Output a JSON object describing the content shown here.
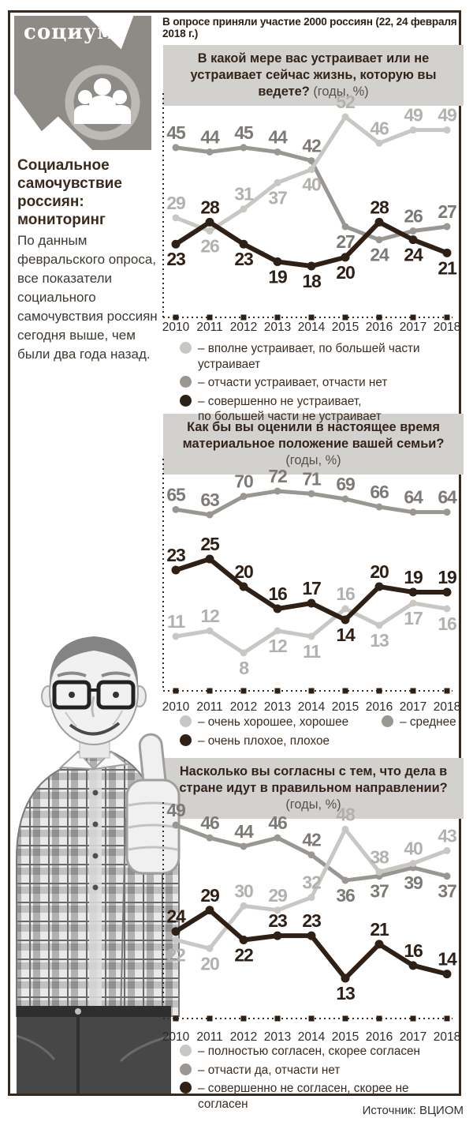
{
  "header": {
    "logo_text": "социум",
    "survey_note": "В опросе приняли участие 2000 россиян (22, 24 февраля 2018 г.)"
  },
  "sidebar": {
    "title": "Социальное самочувствие россиян: мониторинг",
    "paragraph": "По данным февральского опроса, все показатели социального самочувствия россиян сегодня выше, чем были два года назад."
  },
  "colors": {
    "light": "#c9c7c4",
    "medium": "#9a9793",
    "dark": "#2f2016",
    "light_label": "#b3b1ae",
    "medium_label": "#7d7a76",
    "dark_label": "#2f2016",
    "frame": "#3a2a1d",
    "title_bg": "#d3d1ce",
    "logo_bg": "#8e8a86"
  },
  "page": {
    "source_label": "Источник: ВЦИОМ"
  },
  "chart_data": [
    {
      "type": "line",
      "title": "В какой мере вас устраивает или не устраивает сейчас жизнь, которую вы ведете?",
      "note": "(годы, %)",
      "categories": [
        "2010",
        "2011",
        "2012",
        "2013",
        "2014",
        "2015",
        "2016",
        "2017",
        "2018"
      ],
      "grid": false,
      "legend_position": "bottom",
      "series": [
        {
          "name": "отчасти устраивает, отчасти нет",
          "color_key": "medium",
          "values": [
            45,
            44,
            45,
            44,
            42,
            27,
            24,
            26,
            27
          ],
          "label_pos": [
            "above",
            "above",
            "above",
            "above",
            "above",
            "below",
            "below",
            "above",
            "above"
          ]
        },
        {
          "name": "вполне устраивает, по большей части устраивает",
          "color_key": "light",
          "values": [
            29,
            26,
            31,
            37,
            40,
            52,
            46,
            49,
            49
          ],
          "label_pos": [
            "above",
            "below",
            "above",
            "below",
            "below",
            "above",
            "above",
            "above",
            "above"
          ]
        },
        {
          "name": "совершенно не устраивает, по большей части не устраивает",
          "color_key": "dark",
          "values": [
            23,
            28,
            23,
            19,
            18,
            20,
            28,
            24,
            21
          ],
          "label_pos": [
            "below",
            "above",
            "below",
            "below",
            "below",
            "below",
            "above",
            "below",
            "below"
          ]
        }
      ],
      "legend": [
        {
          "color_key": "light",
          "label": "– вполне устраивает, по большей части устраивает"
        },
        {
          "color_key": "medium",
          "label": "– отчасти устраивает, отчасти нет"
        },
        {
          "color_key": "dark",
          "label": "– совершенно не устраивает,\nпо большей части не устраивает"
        }
      ]
    },
    {
      "type": "line",
      "title": "Как бы вы оценили в настоящее время материальное положение вашей семьи?",
      "note": "(годы, %)",
      "categories": [
        "2010",
        "2011",
        "2012",
        "2013",
        "2014",
        "2015",
        "2016",
        "2017",
        "2018"
      ],
      "grid": false,
      "legend_position": "bottom",
      "scale_note": "broken y-scale: 60-72 band compressed above 8-25 band",
      "series": [
        {
          "name": "среднее",
          "color_key": "medium",
          "values": [
            65,
            63,
            70,
            72,
            71,
            69,
            66,
            64,
            64
          ],
          "label_pos": [
            "above",
            "above",
            "above",
            "above",
            "above",
            "above",
            "above",
            "above",
            "above"
          ]
        },
        {
          "name": "очень хорошее, хорошее",
          "color_key": "light",
          "values": [
            11,
            12,
            8,
            12,
            11,
            16,
            13,
            17,
            16
          ],
          "label_pos": [
            "above",
            "above",
            "below",
            "below",
            "below",
            "above",
            "below",
            "below",
            "below"
          ]
        },
        {
          "name": "очень плохое, плохое",
          "color_key": "dark",
          "values": [
            23,
            25,
            20,
            16,
            17,
            14,
            20,
            19,
            19
          ],
          "label_pos": [
            "above",
            "above",
            "above",
            "above",
            "above",
            "below",
            "above",
            "above",
            "above"
          ]
        }
      ],
      "legend": [
        {
          "color_key": "light",
          "label": "– очень хорошее, хорошее"
        },
        {
          "color_key": "medium",
          "label": "– среднее"
        },
        {
          "color_key": "dark",
          "label": "– очень плохое, плохое"
        }
      ]
    },
    {
      "type": "line",
      "title": "Насколько вы согласны с тем, что дела в стране идут в правильном направлении?",
      "note": "(годы, %)",
      "categories": [
        "2010",
        "2011",
        "2012",
        "2013",
        "2014",
        "2015",
        "2016",
        "2017",
        "2018"
      ],
      "grid": false,
      "legend_position": "bottom",
      "series": [
        {
          "name": "отчасти да, отчасти нет",
          "color_key": "medium",
          "values": [
            49,
            46,
            44,
            46,
            42,
            36,
            37,
            39,
            37
          ],
          "label_pos": [
            "above",
            "above",
            "above",
            "above",
            "above",
            "below",
            "below",
            "below",
            "below"
          ]
        },
        {
          "name": "полностью согласен, скорее согласен",
          "color_key": "light",
          "values": [
            22,
            20,
            30,
            29,
            32,
            48,
            38,
            40,
            43
          ],
          "label_pos": [
            "below",
            "below",
            "above",
            "above",
            "above",
            "above",
            "above",
            "above",
            "above"
          ]
        },
        {
          "name": "совершенно не согласен, скорее не согласен",
          "color_key": "dark",
          "values": [
            24,
            29,
            22,
            23,
            23,
            13,
            21,
            16,
            14
          ],
          "label_pos": [
            "above",
            "above",
            "below",
            "above",
            "above",
            "below",
            "above",
            "above",
            "above"
          ]
        }
      ],
      "legend": [
        {
          "color_key": "light",
          "label": "– полностью согласен, скорее согласен"
        },
        {
          "color_key": "medium",
          "label": "– отчасти да, отчасти нет"
        },
        {
          "color_key": "dark",
          "label": "– совершенно не согласен, скорее не согласен"
        }
      ]
    }
  ]
}
